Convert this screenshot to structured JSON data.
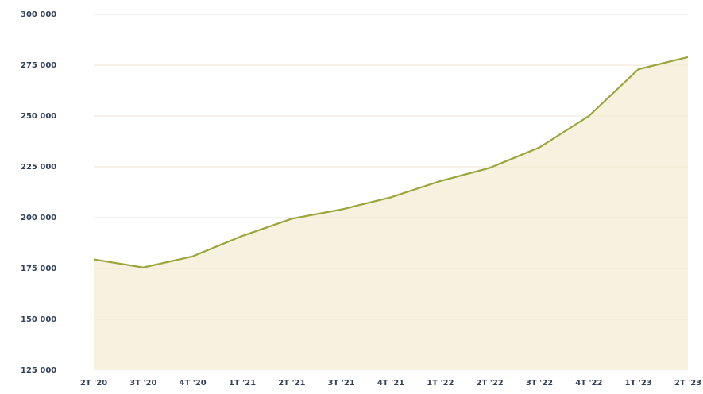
{
  "chart_data": {
    "type": "area",
    "categories": [
      "2T '20",
      "3T '20",
      "4T '20",
      "1T '21",
      "2T '21",
      "3T '21",
      "4T '21",
      "1T '22",
      "2T '22",
      "3T '22",
      "4T '22",
      "1T '23",
      "2T '23"
    ],
    "series": [
      {
        "color": "#9aa63a",
        "fill": "#f7f1df",
        "values": [
          179500,
          175500,
          181000,
          191000,
          199500,
          204000,
          210000,
          218000,
          224500,
          234500,
          250000,
          273000,
          279000
        ]
      }
    ],
    "ylim": [
      125000,
      300000
    ],
    "yticks": [
      {
        "value": 125000,
        "label": "125 000"
      },
      {
        "value": 150000,
        "label": "150 000"
      },
      {
        "value": 175000,
        "label": "175 000"
      },
      {
        "value": 200000,
        "label": "200 000"
      },
      {
        "value": 225000,
        "label": "225 000"
      },
      {
        "value": 250000,
        "label": "250 000"
      },
      {
        "value": 275000,
        "label": "275 000"
      },
      {
        "value": 300000,
        "label": "300 000"
      }
    ],
    "grid": true
  }
}
